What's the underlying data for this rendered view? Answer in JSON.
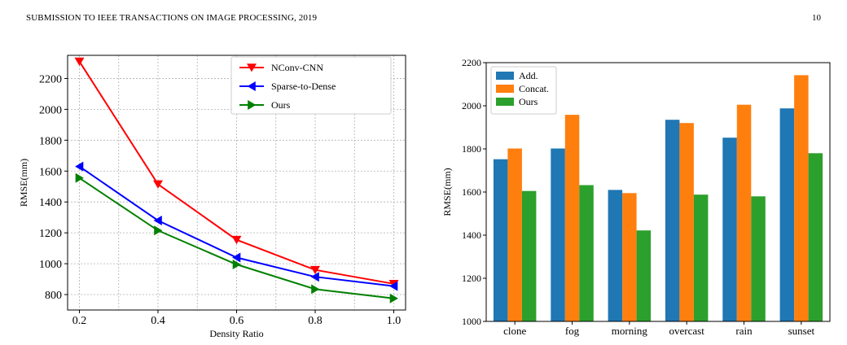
{
  "page": {
    "running_head": "SUBMISSION TO IEEE TRANSACTIONS ON IMAGE PROCESSING, 2019",
    "page_number": "10"
  },
  "colors": {
    "nconv": "#ff0000",
    "sparse": "#0000ff",
    "ours_line": "#008000",
    "add": "#1f77b4",
    "concat": "#ff7f0e",
    "ours_bar": "#2ca02c"
  },
  "chart_data": [
    {
      "type": "line",
      "title": "",
      "xlabel": "Density Ratio",
      "ylabel": "RMSE(mm)",
      "x": [
        0.2,
        0.4,
        0.6,
        0.8,
        1.0
      ],
      "x_ticks": [
        "0.2",
        "0.4",
        "0.6",
        "0.8",
        "1.0"
      ],
      "y_ticks": [
        "800",
        "1000",
        "1200",
        "1400",
        "1600",
        "1800",
        "2000",
        "2200"
      ],
      "xlim": [
        0.17,
        1.03
      ],
      "ylim": [
        700,
        2350
      ],
      "grid": true,
      "legend_position": "top-right",
      "series": [
        {
          "name": "NConv-CNN",
          "values": [
            2310,
            1515,
            1155,
            960,
            870
          ],
          "marker": "triangle-down",
          "color": "#ff0000"
        },
        {
          "name": "Sparse-to-Dense",
          "values": [
            1630,
            1280,
            1040,
            915,
            855
          ],
          "marker": "triangle-left",
          "color": "#0000ff"
        },
        {
          "name": "Ours",
          "values": [
            1555,
            1215,
            995,
            835,
            775
          ],
          "marker": "triangle-right",
          "color": "#008000"
        }
      ]
    },
    {
      "type": "bar",
      "title": "",
      "xlabel": "",
      "ylabel": "RMSE(mm)",
      "categories": [
        "clone",
        "fog",
        "morning",
        "overcast",
        "rain",
        "sunset"
      ],
      "y_ticks": [
        "1000",
        "1200",
        "1400",
        "1600",
        "1800",
        "2000",
        "2200"
      ],
      "ylim": [
        1000,
        2200
      ],
      "grid": false,
      "legend_position": "top-left",
      "series": [
        {
          "name": "Add.",
          "values": [
            1752,
            1802,
            1610,
            1935,
            1852,
            1988
          ],
          "color": "#1f77b4"
        },
        {
          "name": "Concat.",
          "values": [
            1802,
            1958,
            1595,
            1920,
            2005,
            2142
          ],
          "color": "#ff7f0e"
        },
        {
          "name": "Ours",
          "values": [
            1605,
            1632,
            1422,
            1588,
            1580,
            1780
          ],
          "color": "#2ca02c"
        }
      ]
    }
  ]
}
